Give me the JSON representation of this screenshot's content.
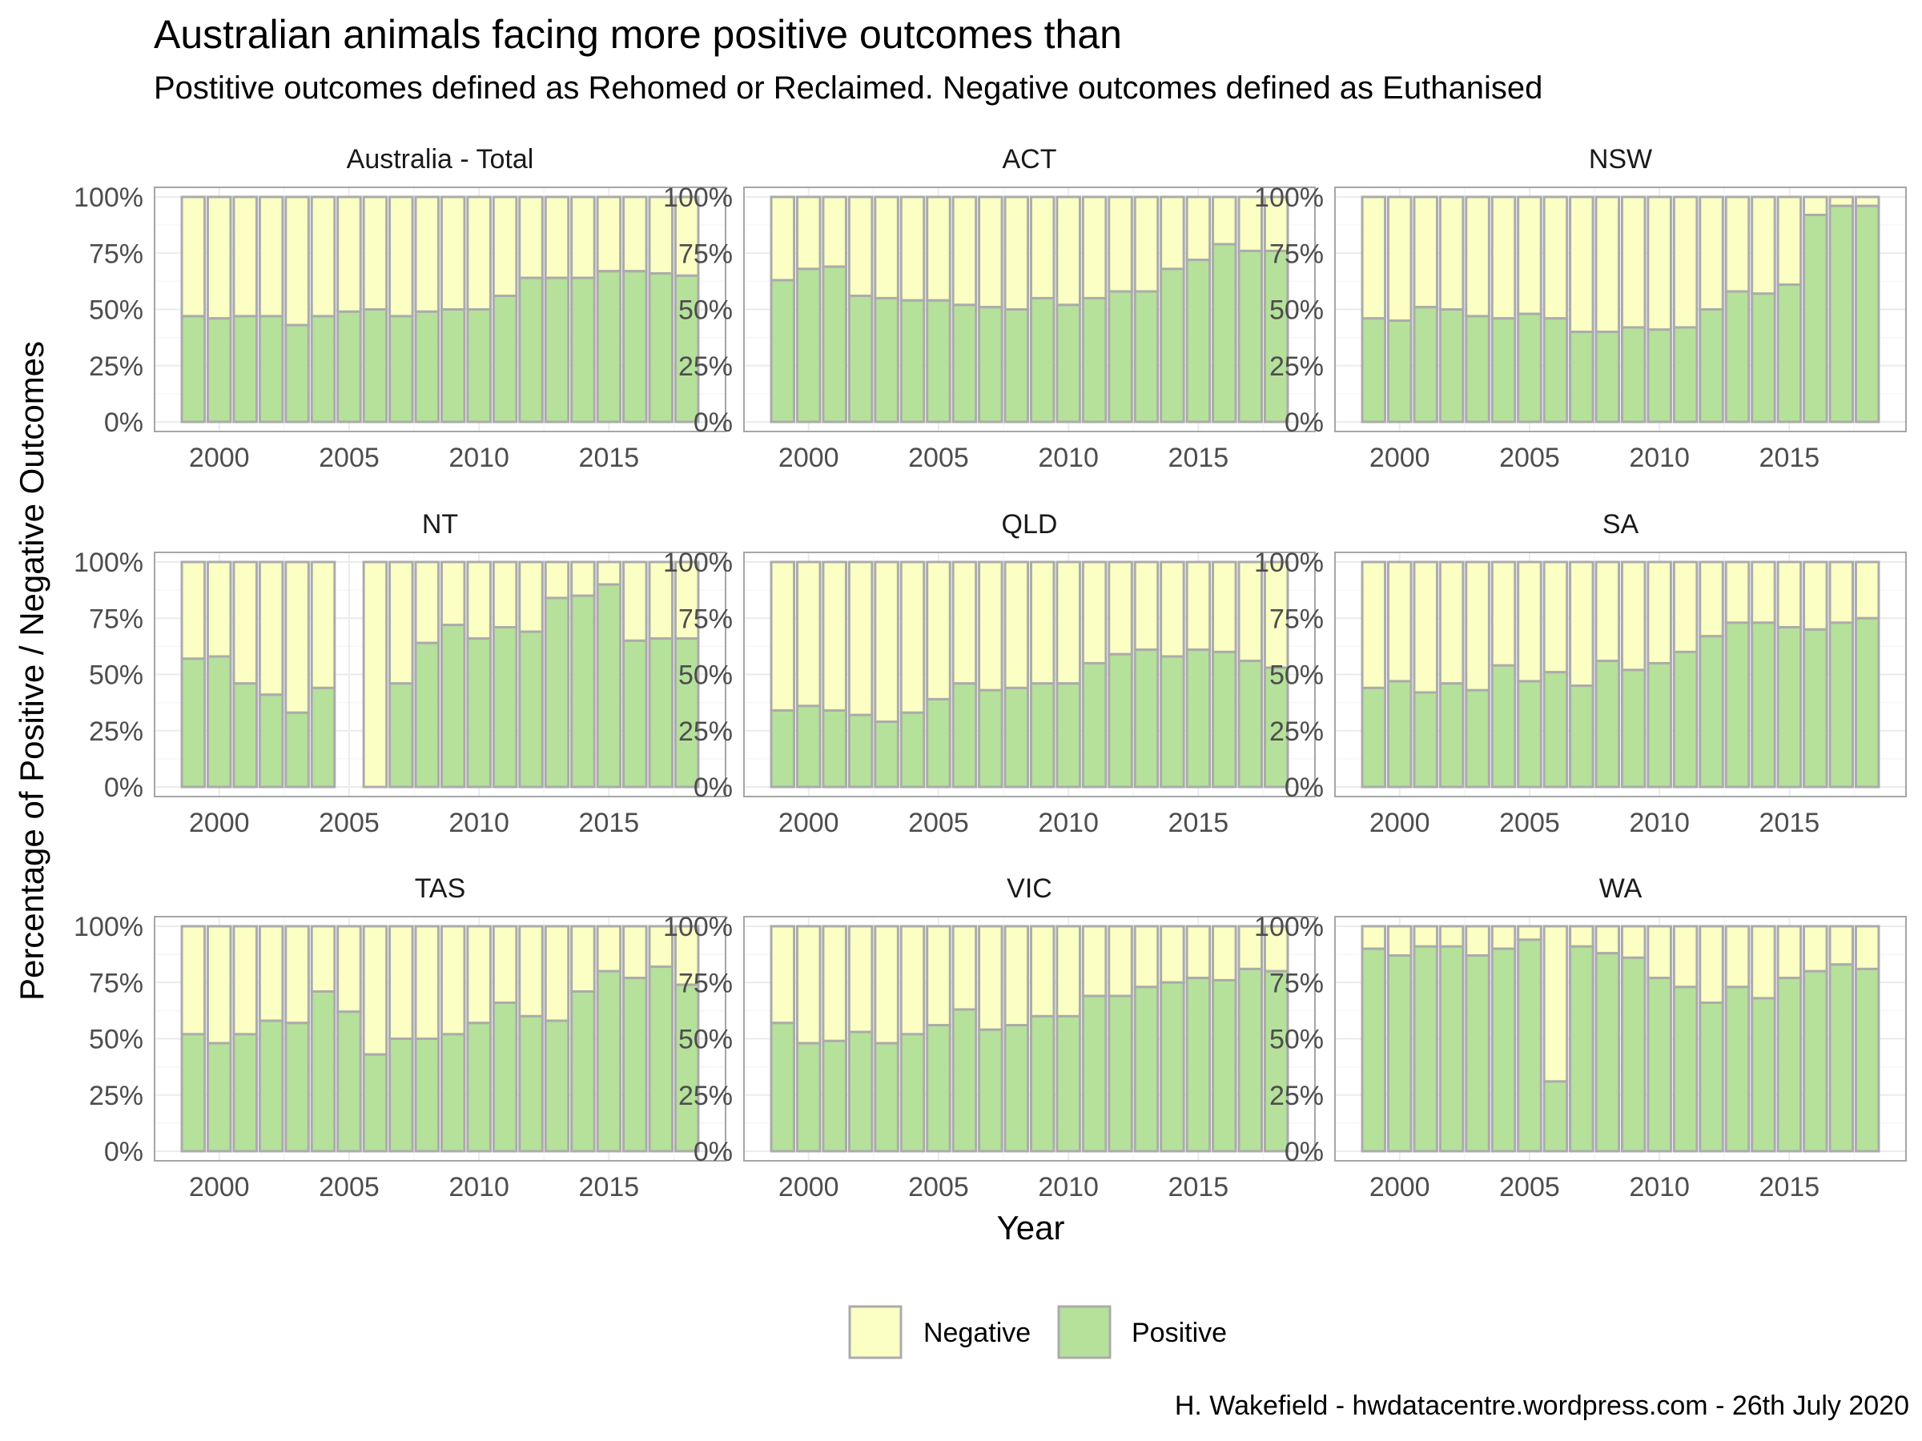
{
  "title": "Australian animals facing more positive outcomes than",
  "subtitle": "Postitive outcomes defined as Rehomed or Reclaimed. Negative outcomes defined as Euthanised",
  "caption": "H. Wakefield - hwdatacentre.wordpress.com - 26th July 2020",
  "colors": {
    "negative": "#fbffc4",
    "positive": "#b5e19b",
    "bar_outline": "#ababab",
    "panel_border": "#a6a6a6",
    "grid_major": "#ebebeb",
    "grid_minor": "#f6f6f6"
  },
  "chart_data": {
    "type": "bar",
    "stacked": true,
    "xlabel": "Year",
    "ylabel": "Percentage of Positive / Negative Outcomes",
    "ylim": [
      0,
      100
    ],
    "y_ticks": [
      "0%",
      "25%",
      "50%",
      "75%",
      "100%"
    ],
    "y_tick_values": [
      0,
      25,
      50,
      75,
      100
    ],
    "x_ticks": [
      "2000",
      "2005",
      "2010",
      "2015"
    ],
    "x_tick_values": [
      2000,
      2005,
      2010,
      2015
    ],
    "years": [
      1999,
      2000,
      2001,
      2002,
      2003,
      2004,
      2005,
      2006,
      2007,
      2008,
      2009,
      2010,
      2011,
      2012,
      2013,
      2014,
      2015,
      2016,
      2017,
      2018
    ],
    "grid": true,
    "legend_position": "bottom",
    "legend": [
      {
        "name": "Negative",
        "color": "#fbffc4"
      },
      {
        "name": "Positive",
        "color": "#b5e19b"
      }
    ],
    "panels": [
      {
        "name": "Australia - Total",
        "positive": [
          47,
          46,
          47,
          47,
          43,
          47,
          49,
          50,
          47,
          49,
          50,
          50,
          56,
          64,
          64,
          64,
          67,
          67,
          66,
          65
        ]
      },
      {
        "name": "ACT",
        "positive": [
          63,
          68,
          69,
          56,
          55,
          54,
          54,
          52,
          51,
          50,
          55,
          52,
          55,
          58,
          58,
          68,
          72,
          79,
          76,
          76
        ]
      },
      {
        "name": "NSW",
        "positive": [
          46,
          45,
          51,
          50,
          47,
          46,
          48,
          46,
          40,
          40,
          42,
          41,
          42,
          50,
          58,
          57,
          61,
          92,
          96,
          96
        ]
      },
      {
        "name": "NT",
        "positive": [
          57,
          58,
          46,
          41,
          33,
          44,
          null,
          0,
          46,
          64,
          72,
          66,
          71,
          69,
          84,
          85,
          90,
          65,
          66,
          66
        ]
      },
      {
        "name": "QLD",
        "positive": [
          34,
          36,
          34,
          32,
          29,
          33,
          39,
          46,
          43,
          44,
          46,
          46,
          55,
          59,
          61,
          58,
          61,
          60,
          56,
          53
        ]
      },
      {
        "name": "SA",
        "positive": [
          44,
          47,
          42,
          46,
          43,
          54,
          47,
          51,
          45,
          56,
          52,
          55,
          60,
          67,
          73,
          73,
          71,
          70,
          73,
          75
        ]
      },
      {
        "name": "TAS",
        "positive": [
          52,
          48,
          52,
          58,
          57,
          71,
          62,
          43,
          50,
          50,
          52,
          57,
          66,
          60,
          58,
          71,
          80,
          77,
          82,
          74
        ]
      },
      {
        "name": "VIC",
        "positive": [
          57,
          48,
          49,
          53,
          48,
          52,
          56,
          63,
          54,
          56,
          60,
          60,
          69,
          69,
          73,
          75,
          77,
          76,
          81,
          80
        ]
      },
      {
        "name": "WA",
        "positive": [
          90,
          87,
          91,
          91,
          87,
          90,
          94,
          31,
          91,
          88,
          86,
          77,
          73,
          66,
          73,
          68,
          77,
          80,
          83,
          81
        ]
      }
    ]
  }
}
